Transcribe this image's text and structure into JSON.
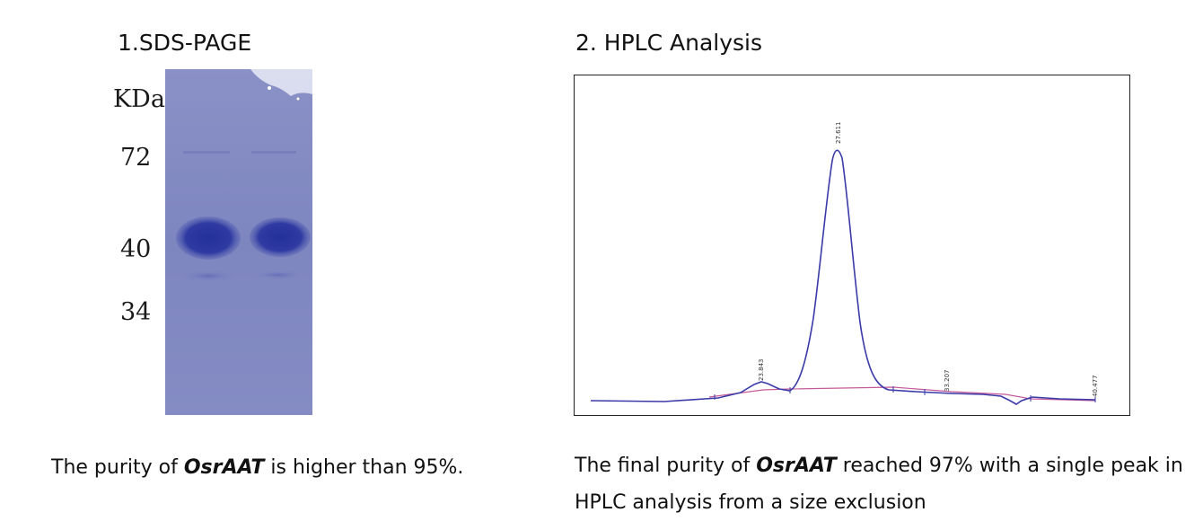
{
  "sds_page": {
    "title": "1.SDS-PAGE",
    "unit_label": "KDa",
    "markers": [
      "72",
      "40",
      "34"
    ]
  },
  "hplc": {
    "title": "2. HPLC Analysis",
    "peak_labels": [
      "23.843",
      "27.611",
      "33.207",
      "40.477"
    ]
  },
  "captions": {
    "left": {
      "prefix": "The purity of ",
      "protein": "OsrAAT",
      "suffix": " is higher than 95%."
    },
    "right": {
      "prefix": "The final purity of ",
      "protein": "OsrAAT",
      "suffix": " reached 97% with a single peak in HPLC analysis from a size exclusion"
    }
  },
  "colors": {
    "gel_background": "#8088c0",
    "gel_band": "#2e3a9e",
    "trace": "#3a3aa8",
    "baseline": "#c45a9a"
  }
}
